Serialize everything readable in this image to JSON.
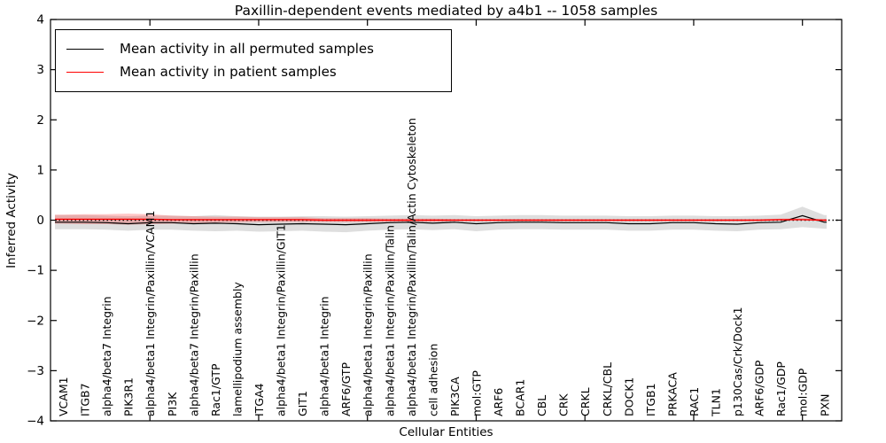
{
  "chart_data": {
    "type": "line",
    "title": "Paxillin-dependent events mediated by a4b1 -- 1058 samples",
    "xlabel": "Cellular Entities",
    "ylabel": "Inferred Activity",
    "ylim": [
      -4,
      4
    ],
    "yticks": [
      "4",
      "3",
      "2",
      "1",
      "0",
      "−1",
      "−2",
      "−3",
      "−4"
    ],
    "ytick_values": [
      4,
      3,
      2,
      1,
      0,
      -1,
      -2,
      -3,
      -4
    ],
    "grid": false,
    "legend_position": "upper left",
    "zero_line": {
      "style": "dotted",
      "color": "#000000",
      "y": 0
    },
    "categories": [
      "VCAM1",
      "ITGB7",
      "alpha4/beta7 Integrin",
      "PIK3R1",
      "alpha4/beta1 Integrin/Paxillin/VCAM1",
      "PI3K",
      "alpha4/beta7 Integrin/Paxillin",
      "Rac1/GTP",
      "lamellipodium assembly",
      "ITGA4",
      "alpha4/beta1 Integrin/Paxillin/GIT1",
      "GIT1",
      "alpha4/beta1 Integrin",
      "ARF6/GTP",
      "alpha4/beta1 Integrin/Paxillin",
      "alpha4/beta1 Integrin/Paxillin/Talin",
      "alpha4/beta1 Integrin/Paxillin/Talin/Actin Cytoskeleton",
      "cell adhesion",
      "PIK3CA",
      "mol:GTP",
      "ARF6",
      "BCAR1",
      "CBL",
      "CRK",
      "CRKL",
      "CRKL/CBL",
      "DOCK1",
      "ITGB1",
      "PRKACA",
      "RAC1",
      "TLN1",
      "p130Cas/Crk/Dock1",
      "ARF6/GDP",
      "Rac1/GDP",
      "mol:GDP",
      "PXN"
    ],
    "series": [
      {
        "name": "Mean activity in all permuted samples",
        "color": "#000000",
        "values": [
          -0.04,
          -0.04,
          -0.05,
          -0.07,
          -0.05,
          -0.05,
          -0.07,
          -0.06,
          -0.07,
          -0.09,
          -0.08,
          -0.07,
          -0.08,
          -0.09,
          -0.07,
          -0.05,
          -0.04,
          -0.06,
          -0.04,
          -0.07,
          -0.05,
          -0.04,
          -0.04,
          -0.05,
          -0.05,
          -0.05,
          -0.07,
          -0.07,
          -0.05,
          -0.05,
          -0.07,
          -0.08,
          -0.05,
          -0.04,
          0.09,
          -0.04
        ],
        "band": {
          "color": "rgba(0,0,0,0.13)",
          "upper": [
            0.1,
            0.1,
            0.09,
            0.08,
            0.09,
            0.09,
            0.08,
            0.1,
            0.08,
            0.07,
            0.07,
            0.08,
            0.08,
            0.07,
            0.08,
            0.09,
            0.1,
            0.09,
            0.1,
            0.08,
            0.09,
            0.1,
            0.1,
            0.09,
            0.09,
            0.09,
            0.08,
            0.08,
            0.09,
            0.09,
            0.08,
            0.08,
            0.09,
            0.11,
            0.27,
            0.1
          ],
          "lower": [
            -0.18,
            -0.18,
            -0.19,
            -0.21,
            -0.19,
            -0.19,
            -0.21,
            -0.22,
            -0.21,
            -0.23,
            -0.22,
            -0.21,
            -0.23,
            -0.24,
            -0.21,
            -0.19,
            -0.18,
            -0.2,
            -0.18,
            -0.22,
            -0.19,
            -0.18,
            -0.18,
            -0.19,
            -0.19,
            -0.19,
            -0.21,
            -0.21,
            -0.19,
            -0.19,
            -0.21,
            -0.22,
            -0.19,
            -0.18,
            -0.14,
            -0.17
          ]
        }
      },
      {
        "name": "Mean activity in patient samples",
        "color": "#ff0000",
        "values": [
          0.02,
          0.02,
          0.02,
          0.02,
          0.02,
          0.01,
          0.01,
          0.01,
          0.01,
          0.01,
          0.01,
          0.01,
          0,
          0,
          0,
          0,
          0,
          0,
          0,
          0,
          0,
          0,
          0,
          0,
          0,
          0,
          0,
          0,
          0,
          0,
          0,
          0,
          0,
          0.01,
          0.01,
          0
        ],
        "band": {
          "color": "rgba(255,0,0,0.22)",
          "upper": [
            0.11,
            0.12,
            0.12,
            0.13,
            0.12,
            0.09,
            0.08,
            0.07,
            0.07,
            0.06,
            0.06,
            0.06,
            0.04,
            0.04,
            0.04,
            0.03,
            0.03,
            0.03,
            0.02,
            0.02,
            0.02,
            0.02,
            0.02,
            0.02,
            0.02,
            0.02,
            0.02,
            0.02,
            0.02,
            0.02,
            0.02,
            0.02,
            0.02,
            0.03,
            0.04,
            0.02
          ],
          "lower": [
            -0.07,
            -0.08,
            -0.08,
            -0.09,
            -0.08,
            -0.07,
            -0.06,
            -0.05,
            -0.05,
            -0.04,
            -0.04,
            -0.04,
            -0.04,
            -0.04,
            -0.04,
            -0.03,
            -0.03,
            -0.03,
            -0.02,
            -0.02,
            -0.02,
            -0.02,
            -0.02,
            -0.02,
            -0.02,
            -0.02,
            -0.02,
            -0.02,
            -0.02,
            -0.02,
            -0.02,
            -0.02,
            -0.02,
            -0.01,
            0.0,
            -0.02
          ]
        }
      }
    ]
  }
}
